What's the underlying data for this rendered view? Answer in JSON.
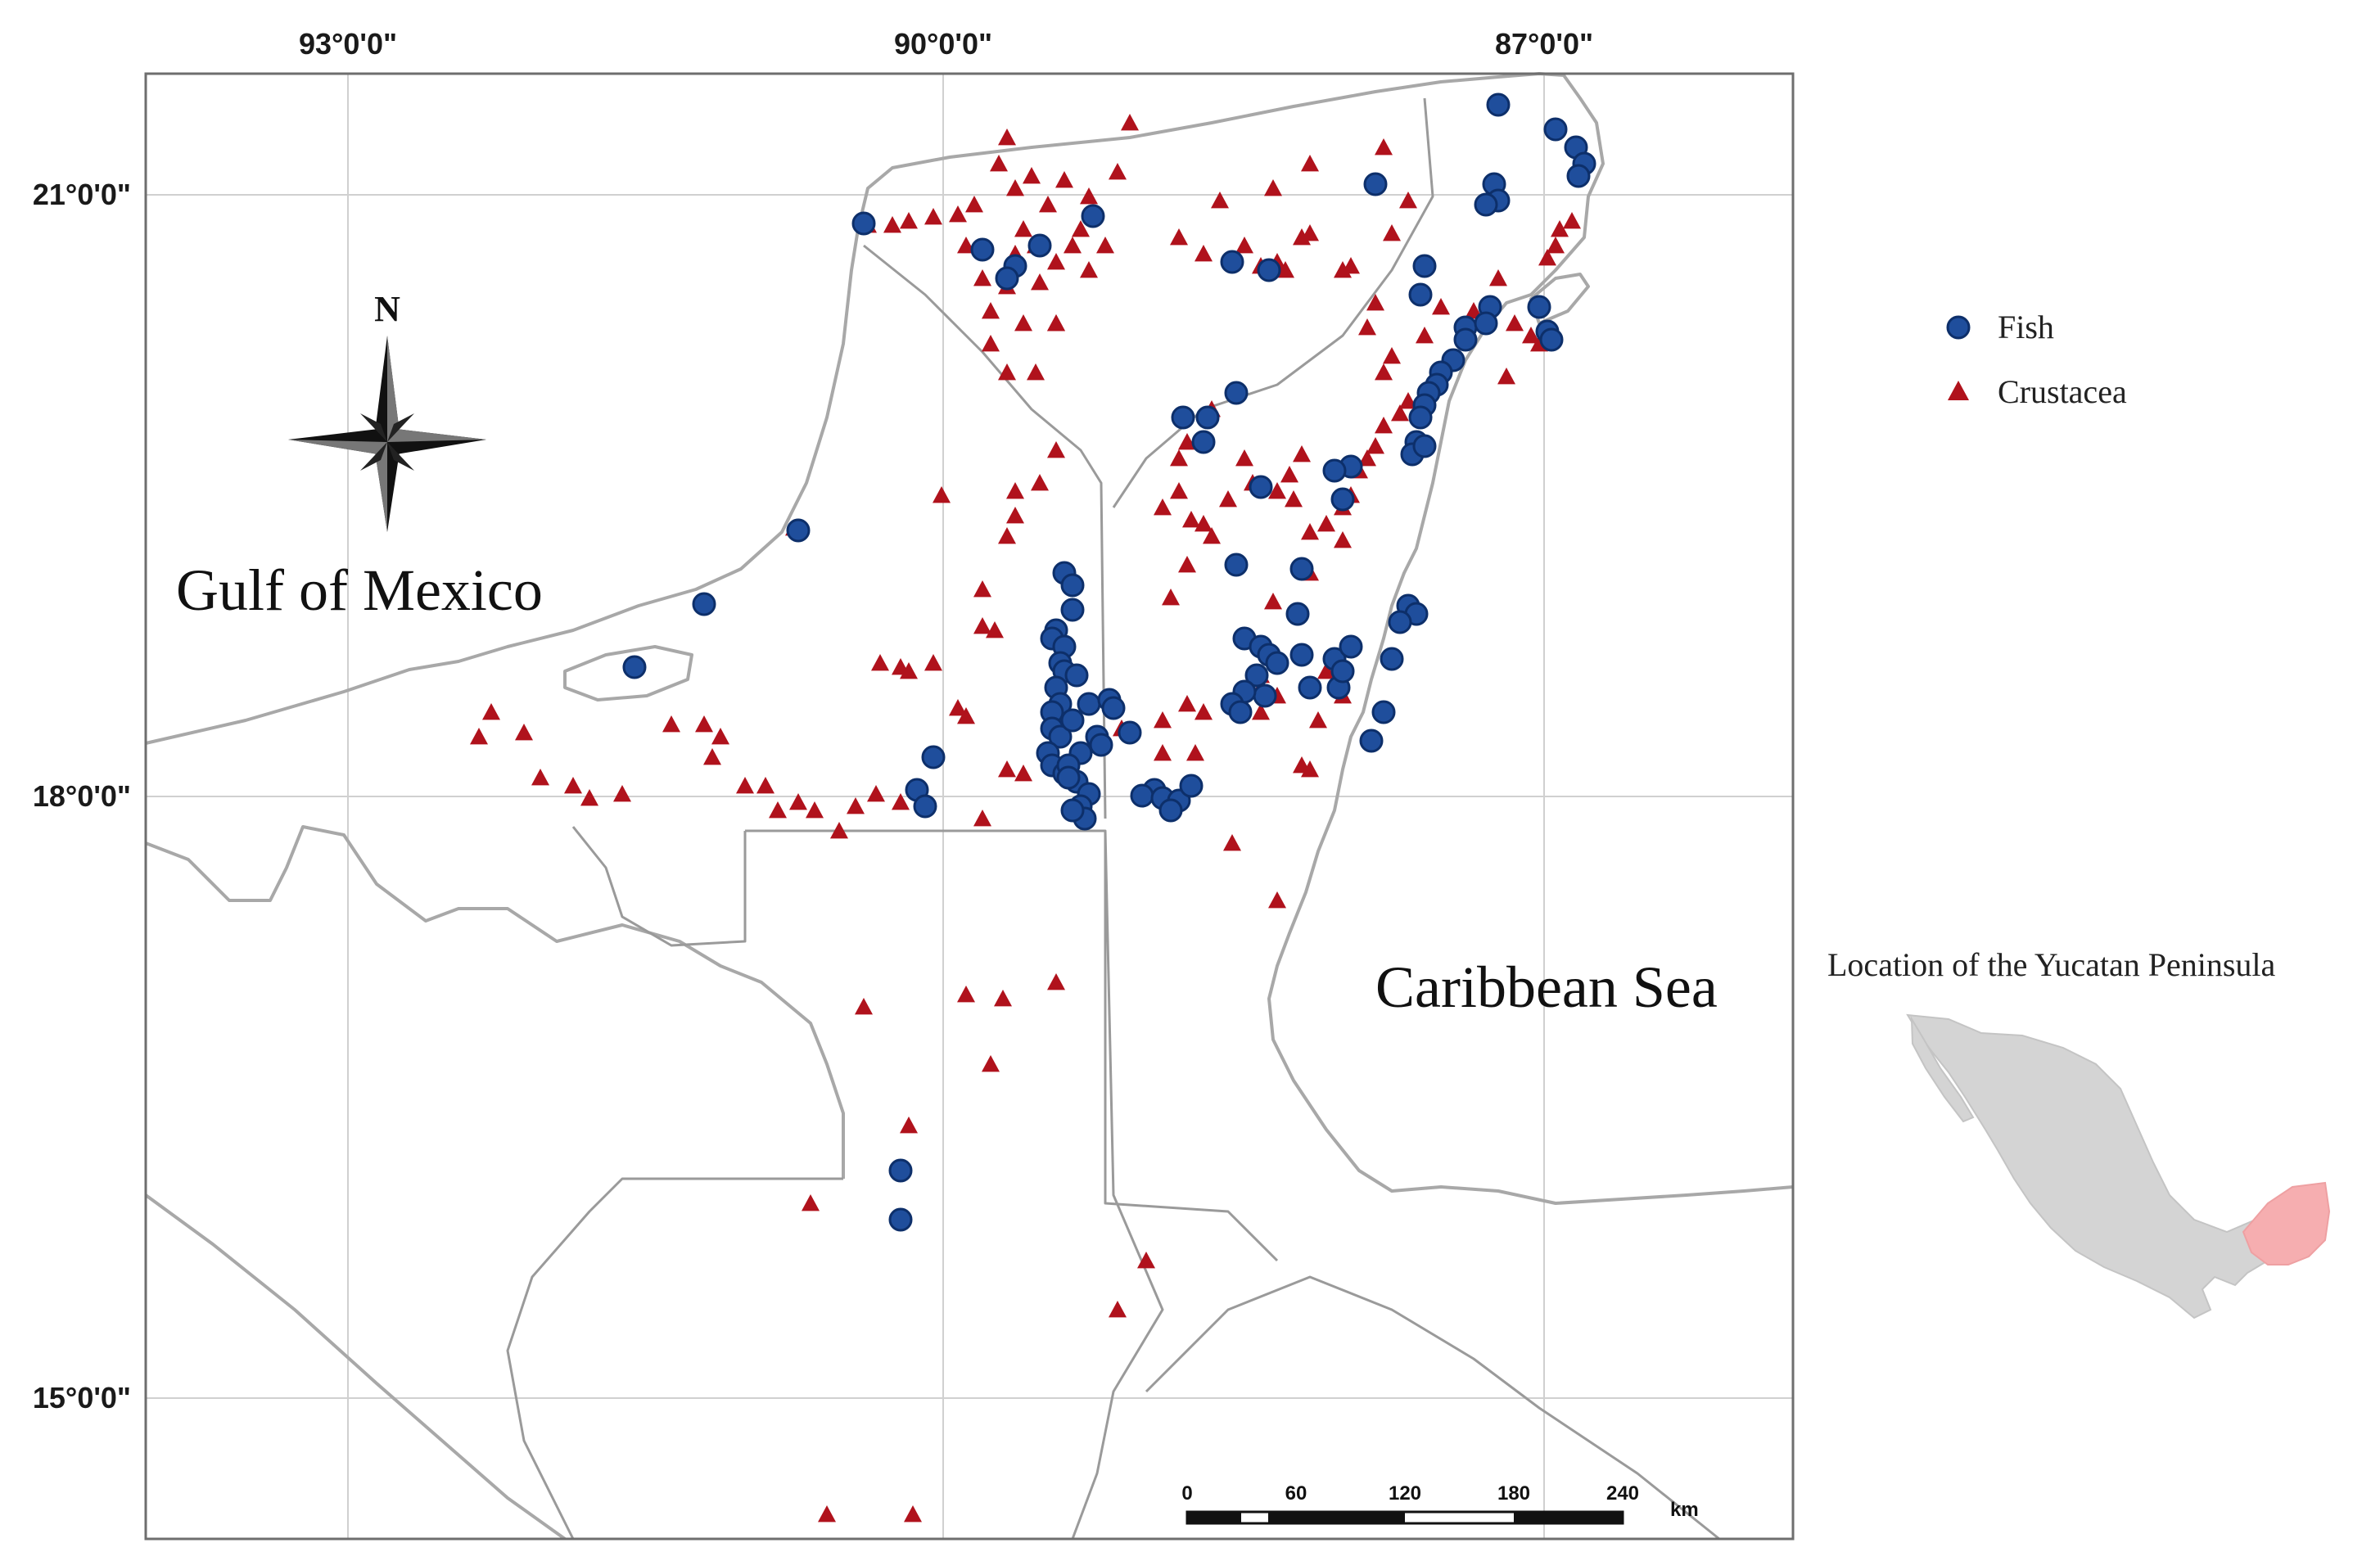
{
  "map": {
    "labels": {
      "gulf": "Gulf of Mexico",
      "caribbean": "Caribbean Sea"
    },
    "north_arrow": "N",
    "axes": {
      "top_lon": [
        {
          "id": "lon-93",
          "label": "93°0'0\""
        },
        {
          "id": "lon-90",
          "label": "90°0'0\""
        },
        {
          "id": "lon-87",
          "label": "87°0'0\""
        }
      ],
      "left_lat": [
        {
          "id": "lat-21",
          "label": "21°0'0\""
        },
        {
          "id": "lat-18",
          "label": "18°0'0\""
        },
        {
          "id": "lat-15",
          "label": "15°0'0\""
        }
      ]
    },
    "legend": {
      "fish": "Fish",
      "crustacea": "Crustacea"
    },
    "colors": {
      "fish": "#1f4e9c",
      "crustacea": "#b0121c",
      "inset_country": "#d4d4d4",
      "inset_highlight": "#f6aeb0"
    },
    "scalebar": {
      "ticks": [
        "0",
        "60",
        "120",
        "180",
        "240"
      ],
      "unit": "km"
    },
    "inset": {
      "title": "Location of the Yucatan Peninsula"
    }
  }
}
